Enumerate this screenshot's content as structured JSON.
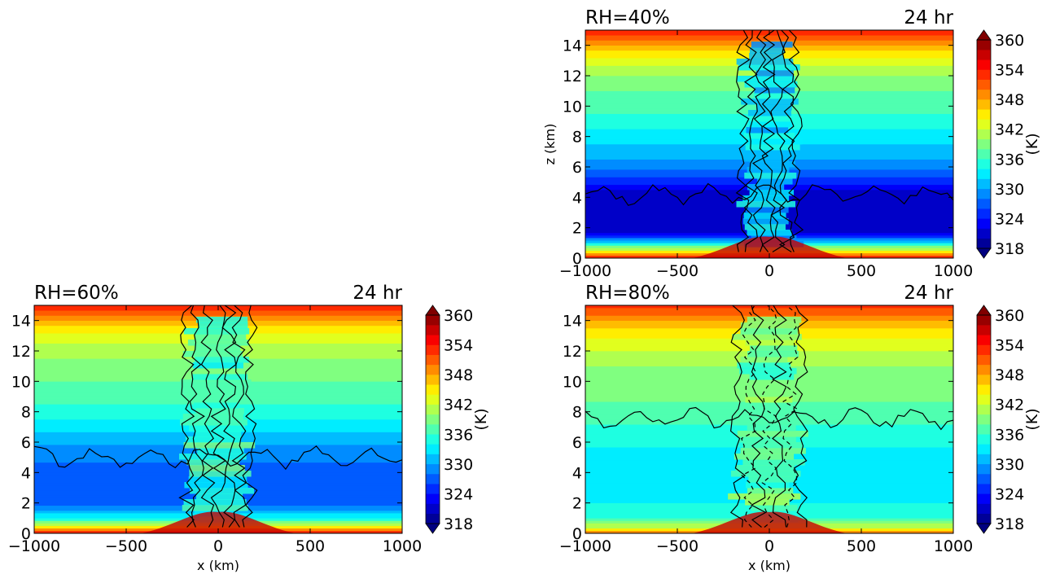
{
  "chart_data": [
    {
      "type": "heatmap",
      "title_left": "RH=40%",
      "title_right": "24 hr",
      "xlabel": "",
      "ylabel": "z (km)",
      "xlim": [
        -1000,
        1000
      ],
      "ylim": [
        0,
        15
      ],
      "xticks": [
        "−1000",
        "−500",
        "0",
        "500",
        "1000"
      ],
      "yticks": [
        "0",
        "2",
        "4",
        "6",
        "8",
        "10",
        "12",
        "14"
      ],
      "colorbar": {
        "label": "(K)",
        "ticks": [
          "318",
          "324",
          "330",
          "336",
          "342",
          "348",
          "354",
          "360"
        ],
        "range": [
          318,
          360
        ]
      },
      "background_profile": [
        {
          "z": 0.0,
          "value": 354
        },
        {
          "z": 0.5,
          "value": 343
        },
        {
          "z": 1.0,
          "value": 333
        },
        {
          "z": 1.6,
          "value": 322
        },
        {
          "z": 3.0,
          "value": 321
        },
        {
          "z": 4.5,
          "value": 322
        },
        {
          "z": 5.5,
          "value": 327
        },
        {
          "z": 6.5,
          "value": 330
        },
        {
          "z": 8.0,
          "value": 333
        },
        {
          "z": 9.5,
          "value": 336
        },
        {
          "z": 11.0,
          "value": 338
        },
        {
          "z": 12.5,
          "value": 341
        },
        {
          "z": 13.5,
          "value": 345
        },
        {
          "z": 14.5,
          "value": 351
        },
        {
          "z": 15.0,
          "value": 354
        }
      ],
      "core": {
        "center_x": 0,
        "half_width": 170,
        "value": 332
      }
    },
    {
      "type": "heatmap",
      "title_left": "RH=60%",
      "title_right": "24 hr",
      "xlabel": "x (km)",
      "ylabel": "",
      "xlim": [
        -1000,
        1000
      ],
      "ylim": [
        0,
        15
      ],
      "xticks": [
        "−1000",
        "−500",
        "0",
        "500",
        "1000"
      ],
      "yticks": [
        "0",
        "2",
        "4",
        "6",
        "8",
        "10",
        "12",
        "14"
      ],
      "colorbar": {
        "label": "(K)",
        "ticks": [
          "318",
          "324",
          "330",
          "336",
          "342",
          "348",
          "354",
          "360"
        ],
        "range": [
          318,
          360
        ]
      },
      "background_profile": [
        {
          "z": 0.0,
          "value": 354
        },
        {
          "z": 0.5,
          "value": 343
        },
        {
          "z": 1.0,
          "value": 334
        },
        {
          "z": 1.8,
          "value": 328
        },
        {
          "z": 2.5,
          "value": 326
        },
        {
          "z": 4.0,
          "value": 327
        },
        {
          "z": 5.5,
          "value": 329
        },
        {
          "z": 7.0,
          "value": 333
        },
        {
          "z": 8.5,
          "value": 336
        },
        {
          "z": 10.0,
          "value": 338
        },
        {
          "z": 11.5,
          "value": 340
        },
        {
          "z": 13.0,
          "value": 343
        },
        {
          "z": 14.0,
          "value": 348
        },
        {
          "z": 15.0,
          "value": 354
        }
      ],
      "core": {
        "center_x": 0,
        "half_width": 200,
        "value": 336
      }
    },
    {
      "type": "heatmap",
      "title_left": "RH=80%",
      "title_right": "24 hr",
      "xlabel": "x (km)",
      "ylabel": "",
      "xlim": [
        -1000,
        1000
      ],
      "ylim": [
        0,
        15
      ],
      "xticks": [
        "−1000",
        "−500",
        "0",
        "500",
        "1000"
      ],
      "yticks": [
        "0",
        "2",
        "4",
        "6",
        "8",
        "10",
        "12",
        "14"
      ],
      "colorbar": {
        "label": "(K)",
        "ticks": [
          "318",
          "324",
          "330",
          "336",
          "342",
          "348",
          "354",
          "360"
        ],
        "range": [
          318,
          360
        ]
      },
      "background_profile": [
        {
          "z": 0.0,
          "value": 352
        },
        {
          "z": 0.4,
          "value": 342
        },
        {
          "z": 1.0,
          "value": 336
        },
        {
          "z": 2.0,
          "value": 334
        },
        {
          "z": 3.0,
          "value": 333
        },
        {
          "z": 5.0,
          "value": 333
        },
        {
          "z": 6.5,
          "value": 335
        },
        {
          "z": 8.0,
          "value": 337
        },
        {
          "z": 9.5,
          "value": 339
        },
        {
          "z": 11.0,
          "value": 340
        },
        {
          "z": 12.5,
          "value": 343
        },
        {
          "z": 13.5,
          "value": 346
        },
        {
          "z": 15.0,
          "value": 353
        }
      ],
      "core": {
        "center_x": 0,
        "half_width": 200,
        "value": 338
      }
    }
  ]
}
